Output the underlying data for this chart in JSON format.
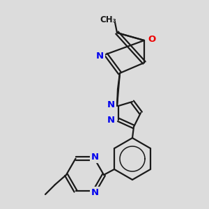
{
  "bg_color": "#dcdcdc",
  "bond_color": "#1a1a1a",
  "bond_width": 1.6,
  "atom_colors": {
    "N": "#0000ee",
    "O": "#ee0000",
    "C": "#1a1a1a"
  },
  "font_size": 9.5,
  "font_size_methyl": 8.5
}
